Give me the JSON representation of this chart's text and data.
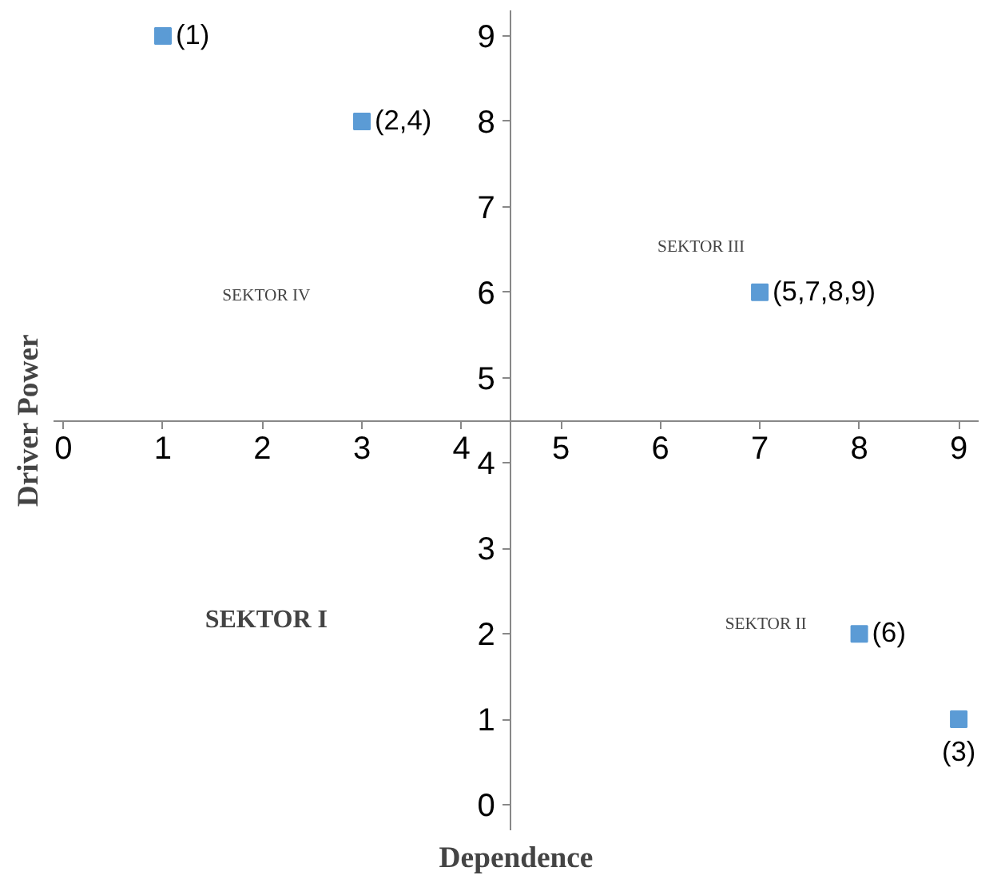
{
  "chart_data": {
    "type": "scatter",
    "xlabel": "Dependence",
    "ylabel": "Driver Power",
    "x": [
      1,
      3,
      7,
      8,
      9
    ],
    "values": [
      9,
      8,
      6,
      2,
      1
    ],
    "color": "#5b9bd5",
    "marker": "square",
    "xlim": [
      -0.1,
      9.2
    ],
    "ylim": [
      -0.3,
      9.3
    ],
    "xticks": [
      0,
      1,
      2,
      3,
      4,
      5,
      6,
      7,
      8,
      9
    ],
    "yticks": [
      0,
      1,
      2,
      3,
      4,
      5,
      6,
      7,
      8,
      9
    ],
    "annotations": [
      "SEKTOR IV",
      "SEKTOR III",
      "SEKTOR I",
      "SEKTOR II",
      {
        "text": "(1)",
        "x": 1,
        "y": 9
      },
      {
        "text": "(2,4)",
        "x": 3,
        "y": 8
      },
      {
        "text": "(5,7,8,9)",
        "x": 7,
        "y": 6
      },
      {
        "text": "(6)",
        "x": 8,
        "y": 2
      },
      {
        "text": "(3)",
        "x": 9,
        "y": 1
      }
    ],
    "grid": false,
    "legend": false
  }
}
